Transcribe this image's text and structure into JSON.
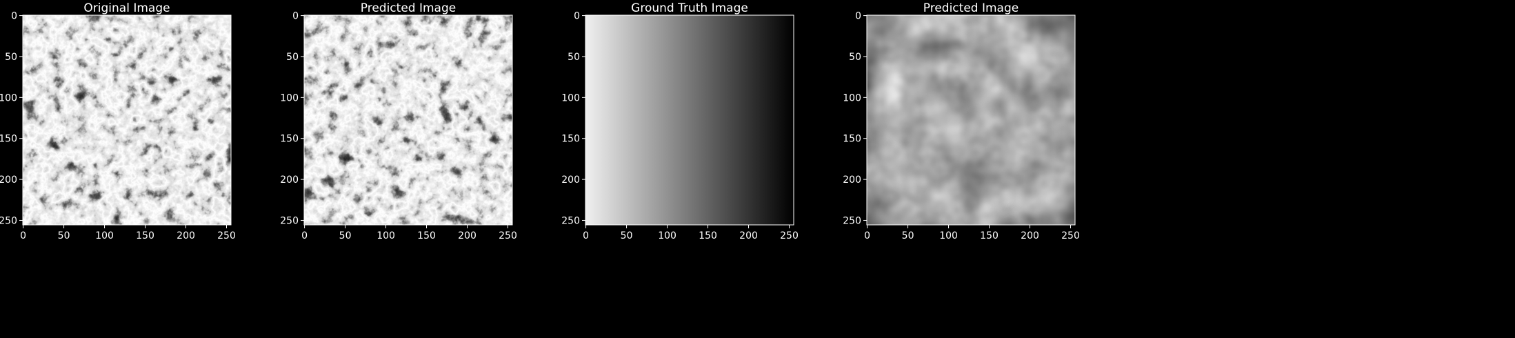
{
  "figure": {
    "background": "#000000",
    "text_color": "#ffffff",
    "panels": [
      {
        "title": "Original Image",
        "content": "fibrous-texture-image",
        "x_ticks": [
          "0",
          "50",
          "100",
          "150",
          "200",
          "250"
        ],
        "y_ticks": [
          "0",
          "50",
          "100",
          "150",
          "200",
          "250"
        ]
      },
      {
        "title": "Predicted Image",
        "content": "fibrous-texture-image",
        "x_ticks": [
          "0",
          "50",
          "100",
          "150",
          "200",
          "250"
        ],
        "y_ticks": [
          "0",
          "50",
          "100",
          "150",
          "200",
          "250"
        ]
      },
      {
        "title": "Ground Truth Image",
        "content": "horizontal-gradient-light-to-dark",
        "gradient_colors": [
          "#f0f0f0",
          "#000000"
        ],
        "x_ticks": [
          "0",
          "50",
          "100",
          "150",
          "200",
          "250"
        ],
        "y_ticks": [
          "0",
          "50",
          "100",
          "150",
          "200",
          "250"
        ]
      },
      {
        "title": "Predicted Image",
        "content": "blurry-gray-texture-image",
        "x_ticks": [
          "0",
          "50",
          "100",
          "150",
          "200",
          "250"
        ],
        "y_ticks": [
          "0",
          "50",
          "100",
          "150",
          "200",
          "250"
        ]
      }
    ]
  }
}
